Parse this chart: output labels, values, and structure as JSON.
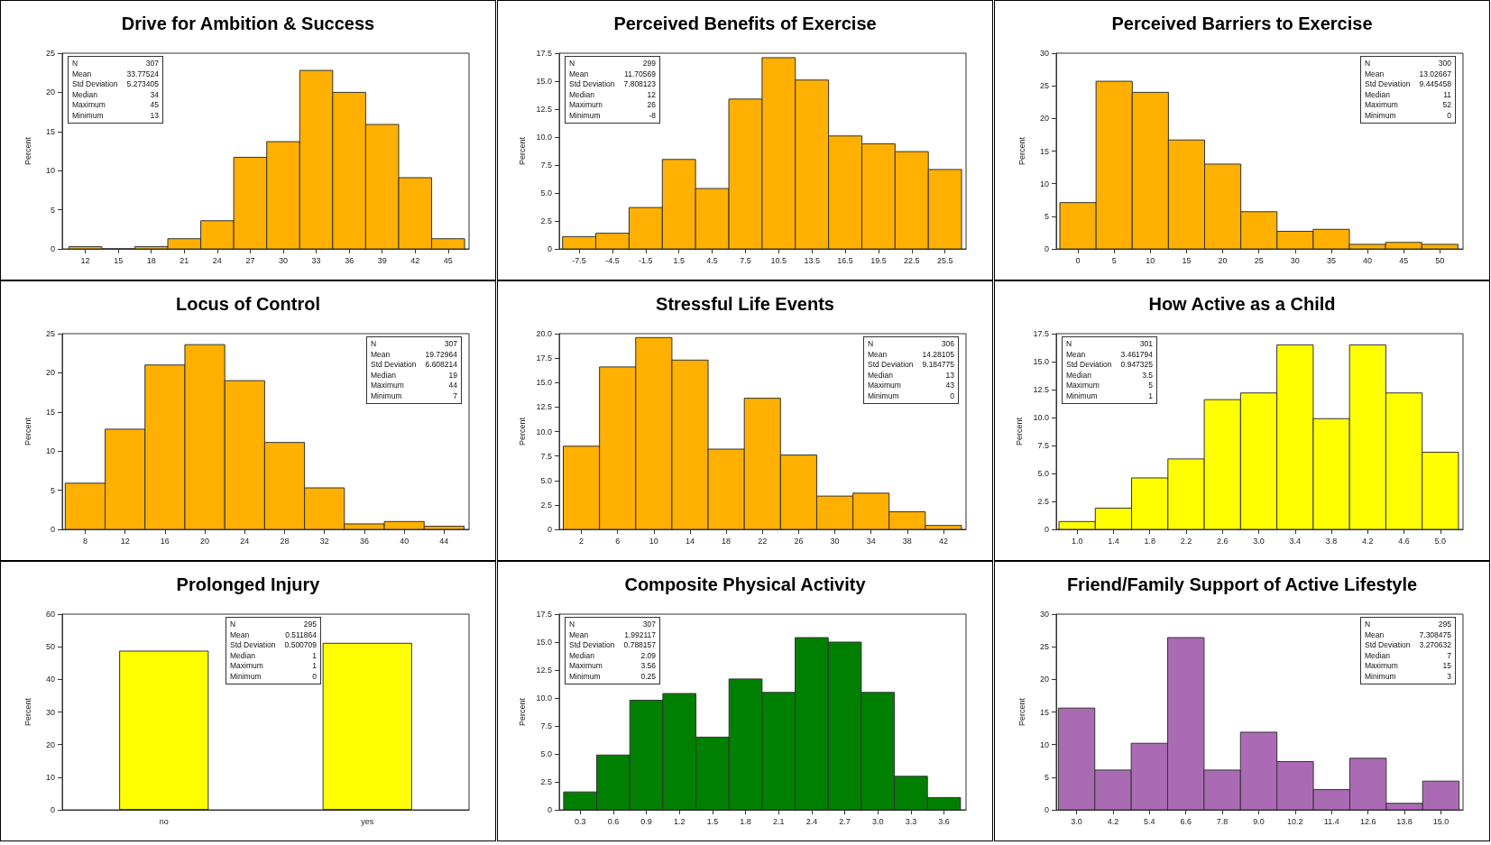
{
  "chart_data": [
    {
      "type": "histogram",
      "title": "Drive for Ambition & Success",
      "ylabel": "Percent",
      "color": "#ffb000",
      "bins": [
        10.5,
        13.5,
        16.5,
        19.5,
        22.5,
        25.5,
        28.5,
        31.5,
        34.5,
        37.5,
        40.5,
        43.5,
        46.5
      ],
      "values": [
        0.3,
        0,
        0.3,
        1.3,
        3.6,
        11.7,
        13.7,
        22.8,
        20.0,
        15.9,
        9.1,
        1.3
      ],
      "xlim": [
        9.9,
        46.9
      ],
      "xticks": [
        12,
        15,
        18,
        21,
        24,
        27,
        30,
        33,
        36,
        39,
        42,
        45
      ],
      "ylim": [
        0,
        25
      ],
      "yticks": [
        0,
        5,
        10,
        15,
        20,
        25
      ],
      "annotations": [
        "N 307",
        "Mean 33.77524",
        "Std Deviation 5.273405",
        "Median 34",
        "Maximum 45",
        "Minimum 13"
      ]
    },
    {
      "type": "histogram",
      "title": "Perceived Benefits of Exercise",
      "ylabel": "Percent",
      "color": "#ffb000",
      "bins": [
        -9,
        -6,
        -3,
        0,
        3,
        6,
        9,
        12,
        15,
        18,
        21,
        24,
        27
      ],
      "values": [
        1.1,
        1.4,
        3.7,
        8.0,
        5.4,
        13.4,
        17.1,
        15.1,
        10.1,
        9.4,
        8.7,
        7.1
      ],
      "xlim": [
        -9.3,
        27.4
      ],
      "xticks": [
        -7.5,
        -4.5,
        -1.5,
        1.5,
        4.5,
        7.5,
        10.5,
        13.5,
        16.5,
        19.5,
        22.5,
        25.5
      ],
      "ylim": [
        0,
        17.5
      ],
      "yticks": [
        0,
        2.5,
        {
          "value": 5,
          "label": "5.0"
        },
        7.5,
        {
          "value": 10,
          "label": "10.0"
        },
        12.5,
        {
          "value": 15,
          "label": "15.0"
        },
        17.5
      ],
      "annotations": [
        "N 299",
        "Mean 11.70569",
        "Std Deviation 7.808123",
        "Median 12",
        "Maximum 26",
        "Minimum -8"
      ]
    },
    {
      "type": "histogram",
      "title": "Perceived Barriers to Exercise",
      "ylabel": "Percent",
      "color": "#ffb000",
      "bins": [
        -2.5,
        2.5,
        7.5,
        12.5,
        17.5,
        22.5,
        27.5,
        32.5,
        37.5,
        42.5,
        47.5,
        52.5
      ],
      "values": [
        7.1,
        25.7,
        24.0,
        16.7,
        13.0,
        5.7,
        2.7,
        3.0,
        0.7,
        1.0,
        0.7
      ],
      "xlim": [
        -3,
        53.2
      ],
      "xticks": [
        0,
        5,
        10,
        15,
        20,
        25,
        30,
        35,
        40,
        45,
        50
      ],
      "ylim": [
        0,
        30
      ],
      "yticks": [
        0,
        5,
        10,
        15,
        20,
        25,
        30
      ],
      "annotations": [
        "N 300",
        "Mean 13.02667",
        "Std Deviation 9.445458",
        "Median 11",
        "Maximum 52",
        "Minimum 0"
      ]
    },
    {
      "type": "histogram",
      "title": "Locus of Control",
      "ylabel": "Percent",
      "color": "#ffb000",
      "bins": [
        6,
        10,
        14,
        18,
        22,
        26,
        30,
        34,
        38,
        42,
        46
      ],
      "values": [
        5.9,
        12.8,
        21.0,
        23.6,
        19.0,
        11.1,
        5.3,
        0.7,
        1.0,
        0.4
      ],
      "xlim": [
        5.7,
        46.5
      ],
      "xticks": [
        8,
        12,
        16,
        20,
        24,
        28,
        32,
        36,
        40,
        44
      ],
      "ylim": [
        0,
        25
      ],
      "yticks": [
        0,
        5,
        10,
        15,
        20,
        25
      ],
      "annotations": [
        "N 307",
        "Mean 19.72964",
        "Std Deviation 6.608214",
        "Median 19",
        "Maximum 44",
        "Minimum 7"
      ]
    },
    {
      "type": "histogram",
      "title": "Stressful Life Events",
      "ylabel": "Percent",
      "color": "#ffb000",
      "bins": [
        0,
        4,
        8,
        12,
        16,
        20,
        24,
        28,
        32,
        36,
        40,
        44
      ],
      "values": [
        8.5,
        16.6,
        19.6,
        17.3,
        8.2,
        13.4,
        7.6,
        3.4,
        3.7,
        1.8,
        0.4
      ],
      "xlim": [
        -0.45,
        44.5
      ],
      "xticks": [
        2,
        6,
        10,
        14,
        18,
        22,
        26,
        30,
        34,
        38,
        42
      ],
      "ylim": [
        0,
        20
      ],
      "yticks": [
        0,
        2.5,
        {
          "value": 5,
          "label": "5.0"
        },
        7.5,
        {
          "value": 10,
          "label": "10.0"
        },
        12.5,
        {
          "value": 15,
          "label": "15.0"
        },
        17.5,
        {
          "value": 20,
          "label": "20.0"
        }
      ],
      "annotations": [
        "N 306",
        "Mean 14.28105",
        "Std Deviation 9.184775",
        "Median 13",
        "Maximum 43",
        "Minimum 0"
      ]
    },
    {
      "type": "histogram",
      "title": "How Active as a Child",
      "ylabel": "Percent",
      "color": "#ffff00",
      "bins": [
        0.8,
        1.2,
        1.6,
        2.0,
        2.4,
        2.8,
        3.2,
        3.6,
        4.0,
        4.4,
        4.8,
        5.2
      ],
      "values": [
        0.7,
        1.9,
        4.6,
        6.3,
        11.6,
        12.2,
        16.5,
        9.9,
        16.5,
        12.2,
        6.9
      ],
      "xlim": [
        0.77,
        5.25
      ],
      "xticks": [
        {
          "value": 1,
          "label": "1.0"
        },
        1.4,
        1.8,
        2.2,
        2.6,
        {
          "value": 3,
          "label": "3.0"
        },
        3.4,
        3.8,
        4.2,
        4.6,
        {
          "value": 5,
          "label": "5.0"
        }
      ],
      "ylim": [
        0,
        17.5
      ],
      "yticks": [
        0,
        2.5,
        {
          "value": 5,
          "label": "5.0"
        },
        7.5,
        {
          "value": 10,
          "label": "10.0"
        },
        12.5,
        {
          "value": 15,
          "label": "15.0"
        },
        17.5
      ],
      "annotations": [
        "N 301",
        "Mean 3.461794",
        "Std Deviation 0.947325",
        "Median 3.5",
        "Maximum 5",
        "Minimum 1"
      ]
    },
    {
      "type": "bar",
      "title": "Prolonged Injury",
      "ylabel": "Percent",
      "color": "#ffff00",
      "categories": [
        "no",
        "yes"
      ],
      "values": [
        48.8,
        51.2
      ],
      "ylim": [
        0,
        60
      ],
      "yticks": [
        0,
        10,
        20,
        30,
        40,
        50,
        60
      ],
      "annotations": [
        "N 295",
        "Mean 0.511864",
        "Std Deviation 0.500709",
        "Median 1",
        "Maximum 1",
        "Minimum 0"
      ]
    },
    {
      "type": "histogram",
      "title": "Composite Physical Activity",
      "ylabel": "Percent",
      "color": "#008000",
      "bins": [
        0.15,
        0.45,
        0.75,
        1.05,
        1.35,
        1.65,
        1.95,
        2.25,
        2.55,
        2.85,
        3.15,
        3.45,
        3.75
      ],
      "values": [
        1.6,
        4.9,
        9.8,
        10.4,
        6.5,
        11.7,
        10.5,
        15.4,
        15.0,
        10.5,
        3.0,
        1.1
      ],
      "xlim": [
        0.11,
        3.8
      ],
      "xticks": [
        0.3,
        0.6,
        0.9,
        1.2,
        1.5,
        1.8,
        2.1,
        2.4,
        2.7,
        {
          "value": 3,
          "label": "3.0"
        },
        3.3,
        3.6
      ],
      "ylim": [
        0,
        17.5
      ],
      "yticks": [
        0,
        2.5,
        {
          "value": 5,
          "label": "5.0"
        },
        7.5,
        {
          "value": 10,
          "label": "10.0"
        },
        12.5,
        {
          "value": 15,
          "label": "15.0"
        },
        17.5
      ],
      "annotations": [
        "N 307",
        "Mean 1.992117",
        "Std Deviation 0.788157",
        "Median 2.09",
        "Maximum 3.56",
        "Minimum 0.25"
      ]
    },
    {
      "type": "histogram",
      "title": "Friend/Family Support of Active Lifestyle",
      "ylabel": "Percent",
      "color": "#ab6bb4",
      "bins": [
        2.4,
        3.6,
        4.8,
        6.0,
        7.2,
        8.4,
        9.6,
        10.8,
        12.0,
        13.2,
        14.4,
        15.6
      ],
      "values": [
        15.6,
        6.1,
        10.2,
        26.4,
        6.1,
        11.9,
        7.4,
        3.1,
        7.9,
        1.0,
        4.4
      ],
      "xlim": [
        2.33,
        15.73
      ],
      "xticks": [
        {
          "value": 3,
          "label": "3.0"
        },
        4.2,
        5.4,
        6.6,
        7.8,
        {
          "value": 9,
          "label": "9.0"
        },
        10.2,
        11.4,
        12.6,
        13.8,
        {
          "value": 15,
          "label": "15.0"
        }
      ],
      "ylim": [
        0,
        30
      ],
      "yticks": [
        0,
        5,
        10,
        15,
        20,
        25,
        30
      ],
      "annotations": [
        "N 295",
        "Mean 7.308475",
        "Std Deviation 3.270632",
        "Median 7",
        "Maximum 15",
        "Minimum 3"
      ]
    }
  ]
}
